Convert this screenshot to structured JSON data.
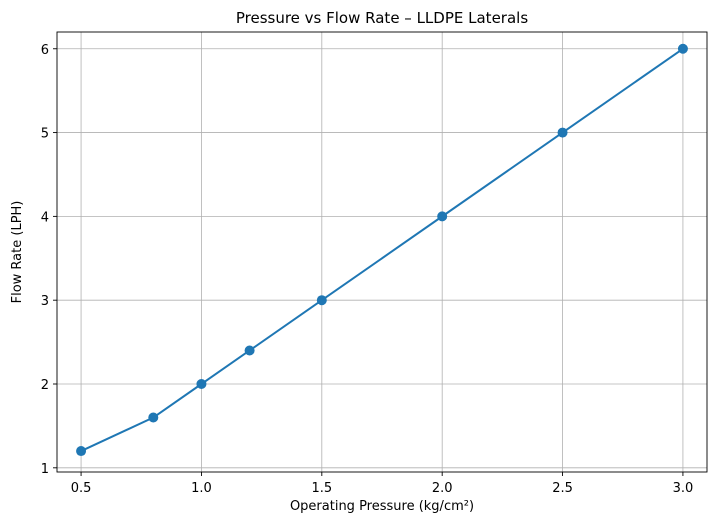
{
  "chart_data": {
    "type": "line",
    "title": "Pressure vs Flow Rate – LLDPE Laterals",
    "xlabel": "Operating Pressure (kg/cm²)",
    "ylabel": "Flow Rate (LPH)",
    "xlim": [
      0.4,
      3.1
    ],
    "ylim": [
      0.95,
      6.2
    ],
    "x_ticks": [
      0.5,
      1.0,
      1.5,
      2.0,
      2.5,
      3.0
    ],
    "x_tick_labels": [
      "0.5",
      "1.0",
      "1.5",
      "2.0",
      "2.5",
      "3.0"
    ],
    "y_ticks": [
      1,
      2,
      3,
      4,
      5,
      6
    ],
    "y_tick_labels": [
      "1",
      "2",
      "3",
      "4",
      "5",
      "6"
    ],
    "grid": true,
    "series": [
      {
        "color": "#1f77b4",
        "marker": "circle",
        "x": [
          0.5,
          0.8,
          1.0,
          1.2,
          1.5,
          2.0,
          2.5,
          3.0
        ],
        "y": [
          1.2,
          1.6,
          2.0,
          2.4,
          3.0,
          4.0,
          5.0,
          6.0
        ]
      }
    ]
  }
}
